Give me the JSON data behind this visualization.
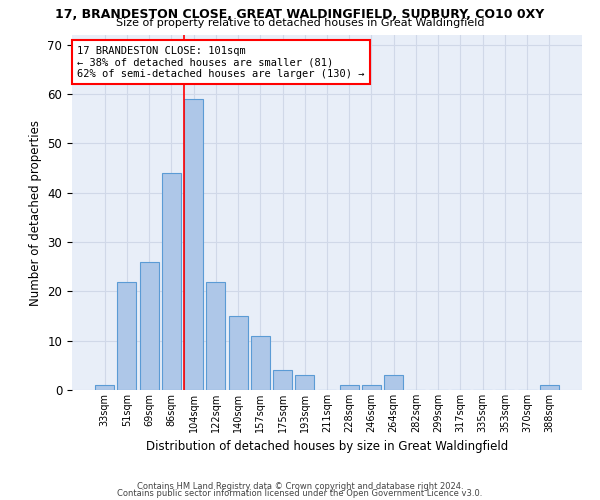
{
  "title1": "17, BRANDESTON CLOSE, GREAT WALDINGFIELD, SUDBURY, CO10 0XY",
  "title2": "Size of property relative to detached houses in Great Waldingfield",
  "xlabel": "Distribution of detached houses by size in Great Waldingfield",
  "ylabel": "Number of detached properties",
  "footnote1": "Contains HM Land Registry data © Crown copyright and database right 2024.",
  "footnote2": "Contains public sector information licensed under the Open Government Licence v3.0.",
  "bar_labels": [
    "33sqm",
    "51sqm",
    "69sqm",
    "86sqm",
    "104sqm",
    "122sqm",
    "140sqm",
    "157sqm",
    "175sqm",
    "193sqm",
    "211sqm",
    "228sqm",
    "246sqm",
    "264sqm",
    "282sqm",
    "299sqm",
    "317sqm",
    "335sqm",
    "353sqm",
    "370sqm",
    "388sqm"
  ],
  "bar_values": [
    1,
    22,
    26,
    44,
    59,
    22,
    15,
    11,
    4,
    3,
    0,
    1,
    1,
    3,
    0,
    0,
    0,
    0,
    0,
    0,
    1
  ],
  "bar_color": "#aec7e8",
  "bar_edge_color": "#5b9bd5",
  "grid_color": "#d0d8e8",
  "background_color": "#e8eef8",
  "red_line_index": 4,
  "annotation_line1": "17 BRANDESTON CLOSE: 101sqm",
  "annotation_line2": "← 38% of detached houses are smaller (81)",
  "annotation_line3": "62% of semi-detached houses are larger (130) →",
  "ylim": [
    0,
    72
  ],
  "yticks": [
    0,
    10,
    20,
    30,
    40,
    50,
    60,
    70
  ]
}
